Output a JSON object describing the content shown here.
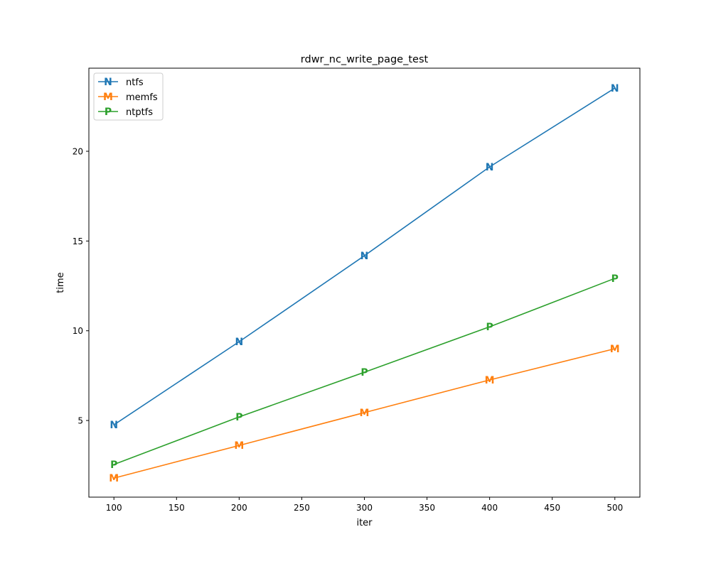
{
  "chart_data": {
    "type": "line",
    "title": "rdwr_nc_write_page_test",
    "xlabel": "iter",
    "ylabel": "time",
    "x": [
      100,
      200,
      300,
      400,
      500
    ],
    "xlim": [
      80,
      520
    ],
    "ylim": [
      0.73,
      24.63
    ],
    "xticks": [
      100,
      150,
      200,
      250,
      300,
      350,
      400,
      450,
      500
    ],
    "yticks": [
      5,
      10,
      15,
      20
    ],
    "grid": false,
    "legend": "top-left",
    "series": [
      {
        "name": "ntfs",
        "marker": "N",
        "color": "#1f77b4",
        "values": [
          4.76,
          9.39,
          14.18,
          19.13,
          23.52
        ]
      },
      {
        "name": "memfs",
        "marker": "M",
        "color": "#ff7f0e",
        "values": [
          1.79,
          3.61,
          5.44,
          7.26,
          9.0
        ]
      },
      {
        "name": "ntptfs",
        "marker": "P",
        "color": "#2ca02c",
        "values": [
          2.55,
          5.2,
          7.69,
          10.22,
          12.92
        ]
      }
    ]
  }
}
